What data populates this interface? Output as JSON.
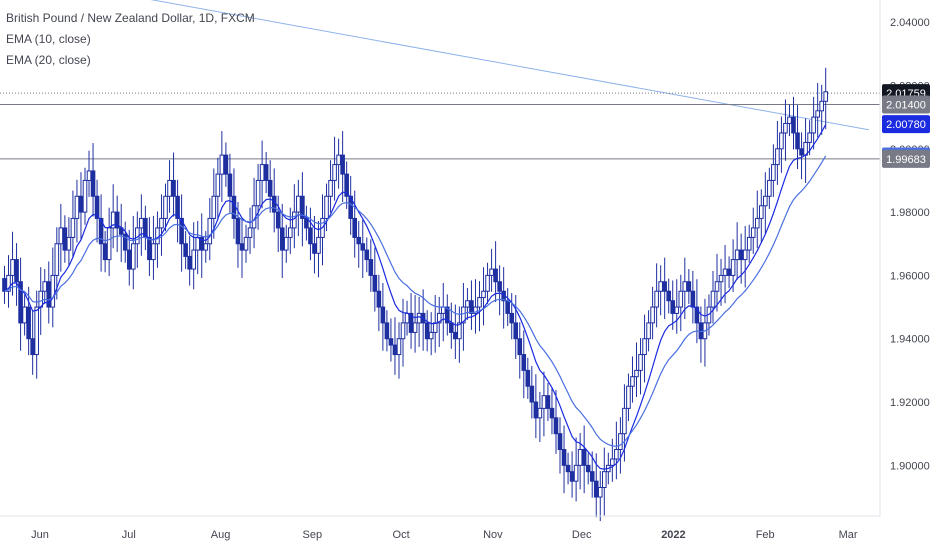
{
  "legend": {
    "symbol": "British Pound / New Zealand Dollar, 1D, FXCM",
    "ema10": "EMA (10, close)",
    "ema20": "EMA (20, close)"
  },
  "colors": {
    "up": "#1e2fa0",
    "ema10": "#1a2be0",
    "ema20": "#4a6fe0",
    "trendline": "#8fb2e8",
    "hline": "#787b86",
    "axis_text": "#434651"
  },
  "chart_data": {
    "type": "candlestick",
    "title": "British Pound / New Zealand Dollar, 1D, FXCM",
    "ylim": [
      1.884,
      2.047
    ],
    "y_ticks": [
      "2.04000",
      "2.02000",
      "2.00000",
      "1.98000",
      "1.96000",
      "1.94000",
      "1.92000",
      "1.90000"
    ],
    "y_tick_values": [
      2.04,
      2.02,
      2.0,
      1.98,
      1.96,
      1.94,
      1.92,
      1.9
    ],
    "x_ticks": [
      {
        "label": "Jun",
        "day": 0
      },
      {
        "label": "Jul",
        "day": 30
      },
      {
        "label": "Aug",
        "day": 61
      },
      {
        "label": "Sep",
        "day": 92
      },
      {
        "label": "Oct",
        "day": 122
      },
      {
        "label": "Nov",
        "day": 153
      },
      {
        "label": "Dec",
        "day": 183
      },
      {
        "label": "2022",
        "day": 214,
        "bold": true
      },
      {
        "label": "Feb",
        "day": 245
      },
      {
        "label": "Mar",
        "day": 273
      }
    ],
    "closes": [
      1.955,
      1.96,
      1.965,
      1.958,
      1.945,
      1.95,
      1.94,
      1.935,
      1.95,
      1.955,
      1.958,
      1.95,
      1.96,
      1.97,
      1.975,
      1.968,
      1.972,
      1.978,
      1.985,
      1.98,
      1.99,
      1.993,
      1.985,
      1.978,
      1.97,
      1.965,
      1.975,
      1.98,
      1.975,
      1.973,
      1.968,
      1.962,
      1.97,
      1.975,
      1.978,
      1.972,
      1.965,
      1.97,
      1.975,
      1.978,
      1.985,
      1.99,
      1.985,
      1.978,
      1.97,
      1.966,
      1.962,
      1.968,
      1.972,
      1.968,
      1.97,
      1.978,
      1.985,
      1.992,
      1.998,
      1.992,
      1.985,
      1.978,
      1.97,
      1.968,
      1.972,
      1.975,
      1.982,
      1.99,
      1.995,
      1.99,
      1.985,
      1.98,
      1.975,
      1.968,
      1.972,
      1.975,
      1.98,
      1.985,
      1.978,
      1.975,
      1.97,
      1.967,
      1.972,
      1.978,
      1.985,
      1.99,
      1.995,
      1.998,
      1.992,
      1.985,
      1.978,
      1.972,
      1.97,
      1.968,
      1.965,
      1.96,
      1.955,
      1.95,
      1.945,
      1.94,
      1.938,
      1.935,
      1.94,
      1.945,
      1.948,
      1.942,
      1.945,
      1.948,
      1.945,
      1.94,
      1.942,
      1.945,
      1.948,
      1.95,
      1.945,
      1.942,
      1.94,
      1.945,
      1.95,
      1.952,
      1.948,
      1.95,
      1.953,
      1.955,
      1.96,
      1.962,
      1.958,
      1.955,
      1.952,
      1.948,
      1.945,
      1.94,
      1.935,
      1.93,
      1.925,
      1.92,
      1.915,
      1.918,
      1.922,
      1.918,
      1.915,
      1.91,
      1.905,
      1.9,
      1.898,
      1.895,
      1.9,
      1.905,
      1.9,
      1.898,
      1.895,
      1.89,
      1.893,
      1.898,
      1.9,
      1.902,
      1.905,
      1.91,
      1.918,
      1.925,
      1.928,
      1.93,
      1.935,
      1.94,
      1.945,
      1.95,
      1.955,
      1.958,
      1.955,
      1.952,
      1.948,
      1.95,
      1.955,
      1.958,
      1.955,
      1.95,
      1.945,
      1.94,
      1.945,
      1.95,
      1.955,
      1.958,
      1.96,
      1.962,
      1.96,
      1.965,
      1.968,
      1.965,
      1.968,
      1.972,
      1.975,
      1.978,
      1.982,
      1.985,
      1.99,
      1.995,
      2.0,
      2.005,
      2.008,
      2.01,
      2.005,
      2.0,
      1.998,
      2.002,
      2.005,
      2.01,
      2.012,
      2.015,
      2.018
    ],
    "price_labels": [
      {
        "label": "2.01759",
        "value": 2.01759,
        "bg": "#131722",
        "fg": "#ffffff",
        "line": "dotted"
      },
      {
        "label": "2.01400",
        "value": 2.014,
        "bg": "#787b86",
        "fg": "#ffffff",
        "line": "solid"
      },
      {
        "label": "2.00780",
        "value": 2.0078,
        "bg": "#1a2be0",
        "fg": "#ffffff",
        "line": "none"
      },
      {
        "label": "1.99756",
        "value": 1.99756,
        "bg": "#4a6fe0",
        "fg": "#ffffff",
        "line": "none"
      },
      {
        "label": "1.99683",
        "value": 1.99683,
        "bg": "#787b86",
        "fg": "#ffffff",
        "line": "solid"
      }
    ],
    "trendline": {
      "from": {
        "day": -3,
        "value": 2.054
      },
      "to": {
        "day": 280,
        "value": 2.006
      }
    }
  }
}
